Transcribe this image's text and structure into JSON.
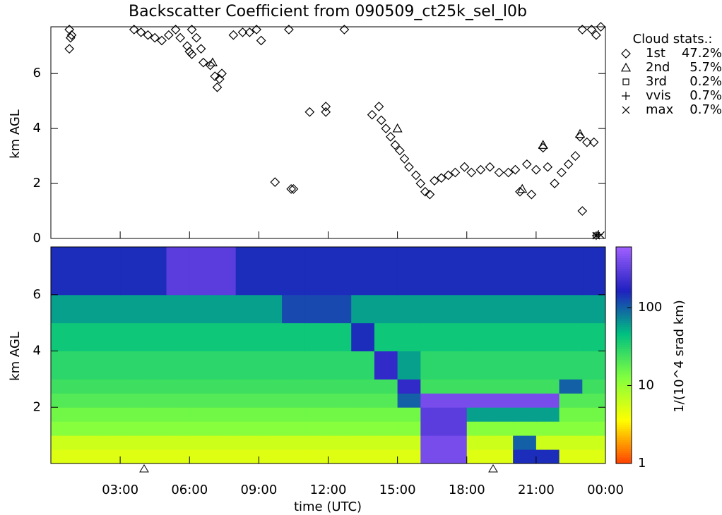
{
  "chart_data": [
    {
      "type": "scatter",
      "title": "Backscatter Coefficient from 090509_ct25k_sel_l0b",
      "ylabel": "km AGL",
      "xlim": [
        0,
        24
      ],
      "ylim": [
        0,
        7.7
      ],
      "yticks": [
        0,
        2,
        4,
        6
      ],
      "legend_title": "Cloud stats.:",
      "legend": "right",
      "series": [
        {
          "name": "1st",
          "stat": "47.2%",
          "marker": "diamond",
          "color": "#000000",
          "x": [
            0.8,
            0.85,
            0.8,
            0.9,
            3.6,
            3.9,
            4.2,
            4.5,
            4.8,
            5.1,
            5.4,
            5.6,
            5.9,
            6.1,
            6.3,
            6.5,
            6.6,
            6.9,
            7.1,
            7.2,
            7.3,
            7.4,
            6.1,
            6.0,
            7.9,
            8.3,
            8.6,
            8.9,
            9.1,
            10.3,
            12.7,
            11.2,
            11.9,
            11.9,
            9.7,
            10.4,
            10.5,
            13.9,
            14.2,
            14.3,
            14.5,
            14.7,
            14.9,
            15.1,
            15.3,
            15.5,
            15.8,
            16.0,
            16.2,
            16.4,
            16.6,
            16.9,
            17.2,
            17.5,
            17.9,
            18.2,
            18.6,
            19.0,
            19.4,
            19.8,
            20.1,
            20.3,
            20.6,
            20.8,
            21.0,
            21.3,
            21.5,
            21.8,
            22.1,
            22.4,
            22.7,
            22.9,
            23.0,
            23.2,
            23.5,
            23.0,
            23.4,
            23.8,
            23.6
          ],
          "y": [
            7.6,
            7.3,
            6.9,
            7.4,
            7.6,
            7.5,
            7.4,
            7.3,
            7.2,
            7.4,
            7.6,
            7.3,
            7.0,
            6.7,
            7.3,
            6.9,
            6.4,
            6.3,
            5.9,
            5.5,
            5.8,
            6.0,
            7.6,
            6.8,
            7.4,
            7.5,
            7.5,
            7.6,
            7.2,
            7.6,
            7.6,
            4.6,
            4.8,
            4.6,
            2.05,
            1.8,
            1.8,
            4.5,
            4.8,
            4.3,
            4.0,
            3.7,
            3.4,
            3.2,
            2.9,
            2.6,
            2.3,
            2.0,
            1.7,
            1.6,
            2.1,
            2.2,
            2.3,
            2.4,
            2.6,
            2.4,
            2.5,
            2.6,
            2.4,
            2.4,
            2.5,
            1.7,
            2.7,
            1.6,
            2.5,
            3.3,
            2.6,
            2.0,
            2.4,
            2.7,
            3.0,
            3.7,
            1.0,
            3.5,
            3.5,
            7.6,
            7.6,
            7.7,
            7.4
          ]
        },
        {
          "name": "2nd",
          "stat": "5.7%",
          "marker": "triangle",
          "color": "#000000",
          "x": [
            7.0,
            15.0,
            20.4,
            22.9,
            21.3
          ],
          "y": [
            6.4,
            4.0,
            1.8,
            3.8,
            3.4
          ]
        },
        {
          "name": "3rd",
          "stat": "0.2%",
          "marker": "square",
          "color": "#000000",
          "x": [
            23.6
          ],
          "y": [
            0.1
          ]
        },
        {
          "name": "vvis",
          "stat": "0.7%",
          "marker": "plus",
          "color": "#000000",
          "x": [
            23.6,
            23.7
          ],
          "y": [
            0.1,
            0.15
          ]
        },
        {
          "name": "max",
          "stat": "0.7%",
          "marker": "x",
          "color": "#000000",
          "x": [
            23.6,
            23.8
          ],
          "y": [
            0.1,
            0.12
          ]
        }
      ]
    },
    {
      "type": "heatmap",
      "ylabel": "km AGL",
      "xlabel": "time (UTC)",
      "xlim": [
        0,
        24
      ],
      "ylim": [
        0,
        7.7
      ],
      "yticks": [
        2,
        4,
        6
      ],
      "xticks": [
        {
          "value": 3,
          "label": "03:00"
        },
        {
          "value": 6,
          "label": "06:00"
        },
        {
          "value": 9,
          "label": "09:00"
        },
        {
          "value": 12,
          "label": "12:00"
        },
        {
          "value": 15,
          "label": "15:00"
        },
        {
          "value": 18,
          "label": "18:00"
        },
        {
          "value": 21,
          "label": "21:00"
        },
        {
          "value": 24,
          "label": "00:00"
        }
      ],
      "colorbar_label": "1/(10^4 srad km)",
      "clim": [
        1,
        600
      ],
      "log_color": true,
      "cticks": [
        1,
        10,
        100
      ],
      "colormap": [
        "#ff4000",
        "#ffff00",
        "#80ff40",
        "#00c080",
        "#2020c0",
        "#a060ff"
      ],
      "x_edges": [
        0,
        1,
        2,
        3,
        4,
        5,
        6,
        7,
        8,
        9,
        10,
        11,
        12,
        13,
        14,
        15,
        16,
        17,
        18,
        19,
        20,
        21,
        22,
        23,
        24
      ],
      "y_edges": [
        0,
        0.5,
        1,
        1.5,
        2,
        2.5,
        3,
        4,
        5,
        6,
        7.7
      ],
      "z": [
        [
          5,
          5,
          5,
          5,
          5,
          5,
          5,
          5,
          5,
          5,
          5,
          5,
          5,
          5,
          5,
          5,
          400,
          400,
          5,
          5,
          150,
          150,
          5,
          5
        ],
        [
          6,
          6,
          6,
          6,
          6,
          6,
          6,
          6,
          6,
          6,
          6,
          6,
          6,
          6,
          6,
          6,
          400,
          400,
          6,
          6,
          100,
          6,
          6,
          6
        ],
        [
          12,
          12,
          12,
          12,
          12,
          12,
          12,
          12,
          12,
          12,
          12,
          12,
          12,
          12,
          12,
          12,
          300,
          300,
          12,
          12,
          12,
          12,
          12,
          12
        ],
        [
          15,
          15,
          15,
          15,
          15,
          15,
          15,
          15,
          15,
          15,
          15,
          15,
          15,
          15,
          15,
          15,
          300,
          300,
          60,
          60,
          60,
          60,
          15,
          15
        ],
        [
          20,
          20,
          20,
          20,
          20,
          20,
          20,
          20,
          20,
          20,
          20,
          20,
          20,
          20,
          20,
          100,
          400,
          400,
          400,
          400,
          400,
          400,
          20,
          20
        ],
        [
          25,
          25,
          25,
          25,
          25,
          25,
          25,
          25,
          25,
          25,
          25,
          25,
          25,
          25,
          25,
          200,
          25,
          25,
          25,
          25,
          25,
          25,
          100,
          25
        ],
        [
          30,
          30,
          30,
          30,
          30,
          30,
          30,
          30,
          30,
          30,
          30,
          30,
          30,
          30,
          200,
          60,
          30,
          30,
          30,
          30,
          30,
          30,
          30,
          30
        ],
        [
          40,
          40,
          40,
          40,
          40,
          40,
          40,
          40,
          40,
          40,
          40,
          40,
          40,
          150,
          40,
          40,
          40,
          40,
          40,
          40,
          40,
          40,
          40,
          40
        ],
        [
          60,
          60,
          60,
          60,
          60,
          60,
          60,
          60,
          60,
          60,
          120,
          120,
          120,
          60,
          60,
          60,
          60,
          60,
          60,
          60,
          60,
          60,
          60,
          60
        ],
        [
          150,
          150,
          150,
          150,
          150,
          300,
          300,
          300,
          150,
          150,
          150,
          150,
          150,
          150,
          150,
          150,
          150,
          150,
          150,
          150,
          150,
          150,
          150,
          150
        ]
      ]
    }
  ]
}
